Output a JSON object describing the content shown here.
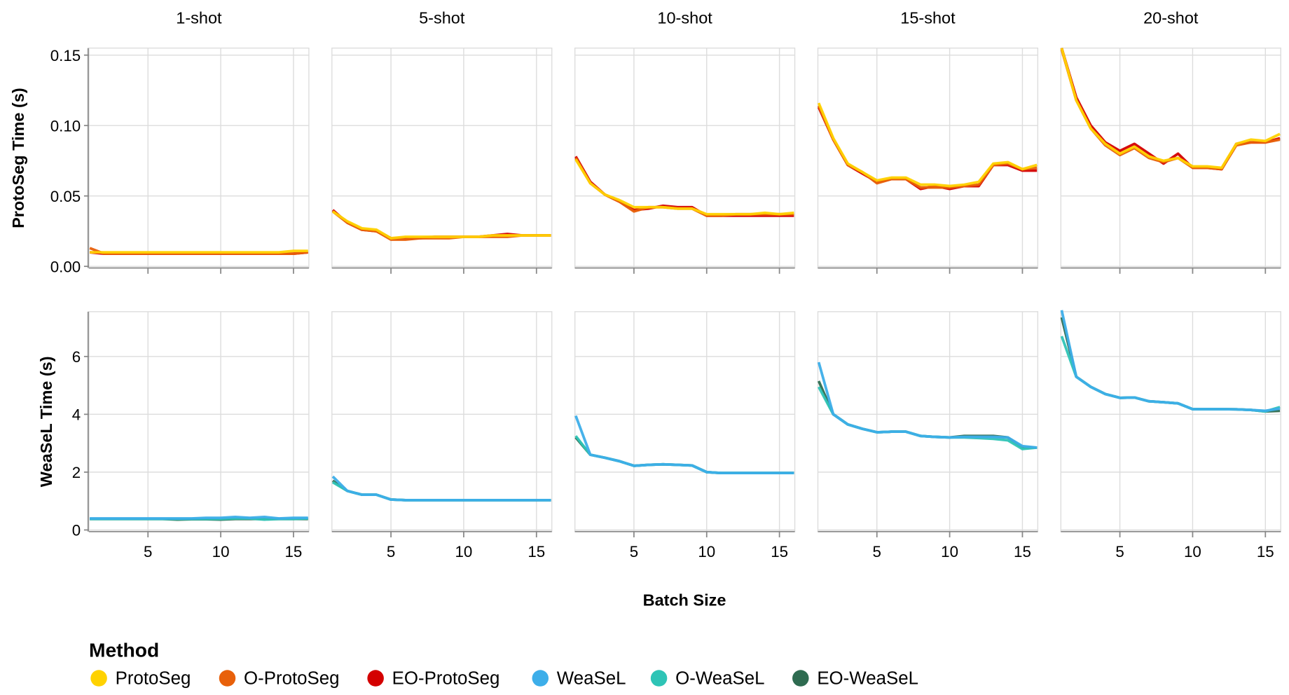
{
  "chart_data": {
    "type": "line",
    "panels": [
      "1-shot",
      "5-shot",
      "10-shot",
      "15-shot",
      "20-shot"
    ],
    "xlabel": "Batch Size",
    "x": [
      1,
      2,
      3,
      4,
      5,
      6,
      7,
      8,
      9,
      10,
      11,
      12,
      13,
      14,
      15,
      16
    ],
    "xlim": [
      1,
      16
    ],
    "xticks": [
      5,
      10,
      15
    ],
    "grid": true,
    "rows": [
      {
        "ylabel": "ProtoSeg Time (s)",
        "ylim": [
          0,
          0.155
        ],
        "yticks": [
          0,
          0.05,
          0.1,
          0.15
        ],
        "ytick_labels": [
          "0.00",
          "0.05",
          "0.10",
          "0.15"
        ],
        "series": [
          {
            "name": "EO-ProtoSeg",
            "color": "#d40000",
            "panels": [
              [
                0.01,
                0.009,
                0.009,
                0.009,
                0.009,
                0.009,
                0.009,
                0.009,
                0.009,
                0.009,
                0.009,
                0.009,
                0.009,
                0.009,
                0.009,
                0.01
              ],
              [
                0.04,
                0.031,
                0.026,
                0.025,
                0.02,
                0.02,
                0.02,
                0.021,
                0.021,
                0.021,
                0.021,
                0.022,
                0.023,
                0.022,
                0.022,
                0.022
              ],
              [
                0.078,
                0.06,
                0.051,
                0.046,
                0.04,
                0.041,
                0.043,
                0.042,
                0.042,
                0.036,
                0.036,
                0.036,
                0.036,
                0.036,
                0.036,
                0.036
              ],
              [
                0.113,
                0.09,
                0.072,
                0.066,
                0.06,
                0.062,
                0.062,
                0.055,
                0.057,
                0.055,
                0.057,
                0.057,
                0.072,
                0.072,
                0.068,
                0.068
              ],
              [
                0.155,
                0.12,
                0.1,
                0.088,
                0.082,
                0.087,
                0.08,
                0.073,
                0.08,
                0.07,
                0.07,
                0.069,
                0.087,
                0.088,
                0.088,
                0.091
              ]
            ]
          },
          {
            "name": "O-ProtoSeg",
            "color": "#e8600a",
            "panels": [
              [
                0.013,
                0.009,
                0.009,
                0.009,
                0.009,
                0.009,
                0.009,
                0.009,
                0.009,
                0.009,
                0.009,
                0.009,
                0.009,
                0.009,
                0.009,
                0.01
              ],
              [
                0.039,
                0.031,
                0.026,
                0.025,
                0.019,
                0.019,
                0.02,
                0.02,
                0.02,
                0.021,
                0.021,
                0.021,
                0.021,
                0.022,
                0.022,
                0.022
              ],
              [
                0.077,
                0.059,
                0.051,
                0.046,
                0.039,
                0.042,
                0.042,
                0.041,
                0.041,
                0.036,
                0.036,
                0.037,
                0.037,
                0.037,
                0.037,
                0.037
              ],
              [
                0.114,
                0.09,
                0.072,
                0.067,
                0.059,
                0.062,
                0.062,
                0.056,
                0.056,
                0.056,
                0.057,
                0.058,
                0.072,
                0.073,
                0.069,
                0.07
              ],
              [
                0.154,
                0.118,
                0.098,
                0.086,
                0.079,
                0.084,
                0.077,
                0.074,
                0.077,
                0.07,
                0.07,
                0.069,
                0.086,
                0.088,
                0.088,
                0.09
              ]
            ]
          },
          {
            "name": "ProtoSeg",
            "color": "#ffd200",
            "panels": [
              [
                0.01,
                0.01,
                0.01,
                0.01,
                0.01,
                0.01,
                0.01,
                0.01,
                0.01,
                0.01,
                0.01,
                0.01,
                0.01,
                0.01,
                0.011,
                0.011
              ],
              [
                0.039,
                0.032,
                0.027,
                0.026,
                0.02,
                0.021,
                0.021,
                0.021,
                0.021,
                0.021,
                0.021,
                0.022,
                0.022,
                0.022,
                0.022,
                0.022
              ],
              [
                0.076,
                0.059,
                0.051,
                0.047,
                0.042,
                0.042,
                0.042,
                0.041,
                0.041,
                0.037,
                0.037,
                0.037,
                0.037,
                0.038,
                0.037,
                0.038
              ],
              [
                0.116,
                0.091,
                0.073,
                0.067,
                0.061,
                0.063,
                0.063,
                0.058,
                0.058,
                0.057,
                0.058,
                0.06,
                0.073,
                0.074,
                0.069,
                0.072
              ],
              [
                0.155,
                0.118,
                0.098,
                0.087,
                0.08,
                0.085,
                0.078,
                0.075,
                0.077,
                0.071,
                0.071,
                0.07,
                0.087,
                0.09,
                0.089,
                0.094
              ]
            ]
          }
        ]
      },
      {
        "ylabel": "WeaSeL Time (s)",
        "ylim": [
          0,
          7.55
        ],
        "yticks": [
          0,
          2,
          4,
          6
        ],
        "ytick_labels": [
          "0",
          "2",
          "4",
          "6"
        ],
        "series": [
          {
            "name": "EO-WeaSeL",
            "color": "#2e6b50",
            "panels": [
              [
                0.38,
                0.38,
                0.38,
                0.38,
                0.38,
                0.38,
                0.36,
                0.37,
                0.37,
                0.36,
                0.38,
                0.38,
                0.38,
                0.38,
                0.38,
                0.38
              ],
              [
                1.7,
                1.35,
                1.22,
                1.22,
                1.05,
                1.03,
                1.03,
                1.03,
                1.03,
                1.03,
                1.03,
                1.03,
                1.03,
                1.03,
                1.03,
                1.03
              ],
              [
                3.2,
                2.6,
                2.5,
                2.38,
                2.22,
                2.25,
                2.27,
                2.25,
                2.23,
                2.0,
                1.97,
                1.97,
                1.97,
                1.97,
                1.97,
                1.97
              ],
              [
                5.15,
                4.0,
                3.65,
                3.5,
                3.38,
                3.4,
                3.4,
                3.25,
                3.22,
                3.2,
                3.25,
                3.25,
                3.25,
                3.2,
                2.85,
                2.85
              ],
              [
                7.35,
                5.3,
                4.95,
                4.7,
                4.57,
                4.58,
                4.45,
                4.42,
                4.38,
                4.18,
                4.18,
                4.18,
                4.17,
                4.15,
                4.1,
                4.12
              ]
            ]
          },
          {
            "name": "O-WeaSeL",
            "color": "#2ec4b6",
            "panels": [
              [
                0.38,
                0.38,
                0.38,
                0.38,
                0.38,
                0.38,
                0.38,
                0.38,
                0.38,
                0.38,
                0.4,
                0.4,
                0.36,
                0.38,
                0.38,
                0.4
              ],
              [
                1.65,
                1.35,
                1.22,
                1.22,
                1.05,
                1.03,
                1.03,
                1.03,
                1.03,
                1.03,
                1.03,
                1.03,
                1.03,
                1.03,
                1.03,
                1.03
              ],
              [
                3.25,
                2.6,
                2.5,
                2.38,
                2.22,
                2.25,
                2.27,
                2.25,
                2.23,
                2.0,
                1.97,
                1.97,
                1.97,
                1.97,
                1.97,
                1.97
              ],
              [
                4.95,
                4.0,
                3.65,
                3.5,
                3.38,
                3.4,
                3.4,
                3.25,
                3.22,
                3.2,
                3.2,
                3.18,
                3.15,
                3.1,
                2.8,
                2.85
              ],
              [
                6.7,
                5.3,
                4.95,
                4.7,
                4.57,
                4.58,
                4.45,
                4.42,
                4.38,
                4.18,
                4.18,
                4.18,
                4.17,
                4.15,
                4.1,
                4.25
              ]
            ]
          },
          {
            "name": "WeaSeL",
            "color": "#3daee9",
            "panels": [
              [
                0.4,
                0.4,
                0.4,
                0.4,
                0.4,
                0.4,
                0.4,
                0.4,
                0.42,
                0.42,
                0.45,
                0.42,
                0.45,
                0.4,
                0.42,
                0.42
              ],
              [
                1.85,
                1.35,
                1.22,
                1.22,
                1.05,
                1.03,
                1.03,
                1.03,
                1.03,
                1.03,
                1.03,
                1.03,
                1.03,
                1.03,
                1.03,
                1.03
              ],
              [
                3.95,
                2.6,
                2.5,
                2.38,
                2.22,
                2.25,
                2.27,
                2.25,
                2.23,
                2.0,
                1.97,
                1.97,
                1.97,
                1.97,
                1.97,
                1.97
              ],
              [
                5.8,
                4.0,
                3.65,
                3.5,
                3.38,
                3.4,
                3.4,
                3.25,
                3.22,
                3.2,
                3.22,
                3.22,
                3.22,
                3.2,
                2.9,
                2.85
              ],
              [
                7.6,
                5.3,
                4.95,
                4.7,
                4.57,
                4.58,
                4.45,
                4.42,
                4.38,
                4.18,
                4.18,
                4.18,
                4.17,
                4.15,
                4.12,
                4.2
              ]
            ]
          }
        ]
      }
    ],
    "legend": {
      "title": "Method",
      "placement": "bottom-left",
      "entries": [
        {
          "name": "ProtoSeg",
          "color": "#ffd200"
        },
        {
          "name": "O-ProtoSeg",
          "color": "#e8600a"
        },
        {
          "name": "EO-ProtoSeg",
          "color": "#d40000"
        },
        {
          "name": "WeaSeL",
          "color": "#3daee9"
        },
        {
          "name": "O-WeaSeL",
          "color": "#2ec4b6"
        },
        {
          "name": "EO-WeaSeL",
          "color": "#2e6b50"
        }
      ]
    }
  }
}
